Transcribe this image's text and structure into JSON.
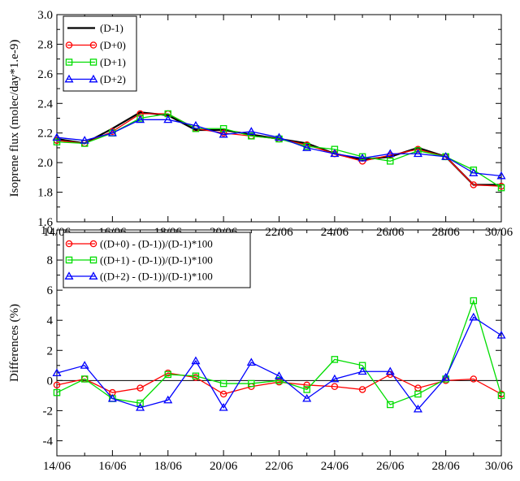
{
  "chart_data": [
    {
      "type": "line",
      "ylabel": "Isoprene flux (molec/day*1.e-9)",
      "xlabel": "",
      "ylim": [
        1.6,
        3.0
      ],
      "yticks": [
        "1.6",
        "1.8",
        "2.0",
        "2.2",
        "2.4",
        "2.6",
        "2.8",
        "3.0"
      ],
      "xticks": [
        "14/06",
        "16/06",
        "18/06",
        "20/06",
        "22/06",
        "24/06",
        "26/06",
        "28/06",
        "30/06"
      ],
      "x": [
        "14/06",
        "15/06",
        "16/06",
        "17/06",
        "18/06",
        "19/06",
        "20/06",
        "21/06",
        "22/06",
        "23/06",
        "24/06",
        "25/06",
        "26/06",
        "27/06",
        "28/06",
        "29/06",
        "30/06"
      ],
      "legend_position": "top-left",
      "grid": false,
      "series": [
        {
          "name": "(D-1)",
          "color": "#000000",
          "marker": "none",
          "values": [
            2.16,
            2.13,
            2.23,
            2.34,
            2.32,
            2.22,
            2.22,
            2.19,
            2.16,
            2.13,
            2.06,
            2.02,
            2.04,
            2.1,
            2.04,
            1.85,
            1.85
          ]
        },
        {
          "name": "(D+0)",
          "color": "#ff0000",
          "marker": "circle",
          "values": [
            2.15,
            2.13,
            2.21,
            2.33,
            2.33,
            2.23,
            2.2,
            2.18,
            2.16,
            2.12,
            2.06,
            2.01,
            2.05,
            2.09,
            2.04,
            1.85,
            1.84
          ]
        },
        {
          "name": "(D+1)",
          "color": "#00dd00",
          "marker": "square",
          "values": [
            2.14,
            2.13,
            2.2,
            2.3,
            2.33,
            2.23,
            2.23,
            2.18,
            2.16,
            2.11,
            2.09,
            2.04,
            2.01,
            2.08,
            2.04,
            1.95,
            1.83
          ]
        },
        {
          "name": "(D+2)",
          "color": "#0000ff",
          "marker": "triangle",
          "values": [
            2.17,
            2.15,
            2.2,
            2.29,
            2.29,
            2.25,
            2.19,
            2.21,
            2.17,
            2.1,
            2.06,
            2.03,
            2.06,
            2.06,
            2.04,
            1.93,
            1.91
          ]
        }
      ]
    },
    {
      "type": "line",
      "ylabel": "Differences (%)",
      "xlabel": "",
      "ylim": [
        -5,
        10
      ],
      "yticks": [
        "-4",
        "-2",
        "0",
        "2",
        "4",
        "6",
        "8",
        "10"
      ],
      "xticks": [
        "14/06",
        "16/06",
        "18/06",
        "20/06",
        "22/06",
        "24/06",
        "26/06",
        "28/06",
        "30/06"
      ],
      "x": [
        "14/06",
        "15/06",
        "16/06",
        "17/06",
        "18/06",
        "19/06",
        "20/06",
        "21/06",
        "22/06",
        "23/06",
        "24/06",
        "25/06",
        "26/06",
        "27/06",
        "28/06",
        "29/06",
        "30/06"
      ],
      "zero_line": true,
      "legend_position": "top-left",
      "grid": false,
      "series": [
        {
          "name": "((D+0) - (D-1))/(D-1)*100",
          "color": "#ff0000",
          "marker": "circle",
          "values": [
            -0.3,
            0.1,
            -0.8,
            -0.5,
            0.5,
            0.2,
            -0.9,
            -0.4,
            -0.1,
            -0.3,
            -0.4,
            -0.6,
            0.4,
            -0.5,
            0.0,
            0.1,
            -0.9
          ]
        },
        {
          "name": "((D+1) - (D-1))/(D-1)*100",
          "color": "#00dd00",
          "marker": "square",
          "values": [
            -0.8,
            0.1,
            -1.2,
            -1.5,
            0.4,
            0.3,
            -0.2,
            -0.2,
            0.0,
            -0.6,
            1.4,
            1.0,
            -1.6,
            -0.9,
            0.1,
            5.3,
            -1.0
          ]
        },
        {
          "name": "((D+2) - (D-1))/(D-1)*100",
          "color": "#0000ff",
          "marker": "triangle",
          "values": [
            0.5,
            1.0,
            -1.2,
            -1.8,
            -1.3,
            1.3,
            -1.8,
            1.2,
            0.3,
            -1.2,
            0.1,
            0.6,
            0.6,
            -1.9,
            0.2,
            4.2,
            3.0
          ]
        }
      ]
    }
  ]
}
